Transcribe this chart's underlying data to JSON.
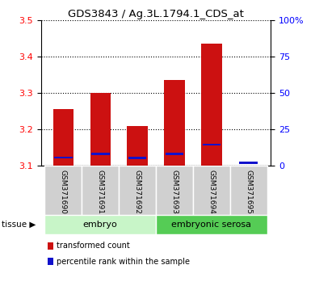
{
  "title": "GDS3843 / Ag.3L.1794.1_CDS_at",
  "samples": [
    "GSM371690",
    "GSM371691",
    "GSM371692",
    "GSM371693",
    "GSM371694",
    "GSM371695"
  ],
  "red_values": [
    3.255,
    3.3,
    3.21,
    3.335,
    3.435,
    3.1
  ],
  "blue_values": [
    3.123,
    3.133,
    3.122,
    3.133,
    3.158,
    3.108
  ],
  "red_has_bar": [
    true,
    true,
    true,
    true,
    true,
    false
  ],
  "ymin": 3.1,
  "ymax": 3.5,
  "yticks_left": [
    3.1,
    3.2,
    3.3,
    3.4,
    3.5
  ],
  "yticks_right": [
    0,
    25,
    50,
    75,
    100
  ],
  "ytick_labels_right": [
    "0",
    "25",
    "50",
    "75",
    "100%"
  ],
  "tissue_groups": [
    {
      "label": "embryo",
      "start": 0,
      "end": 3,
      "color": "#c8f5c8"
    },
    {
      "label": "embryonic serosa",
      "start": 3,
      "end": 6,
      "color": "#55cc55"
    }
  ],
  "tissue_label": "tissue",
  "bar_color": "#cc1111",
  "blue_color": "#1111cc",
  "bar_width": 0.55,
  "legend_items": [
    {
      "label": "transformed count",
      "color": "#cc1111"
    },
    {
      "label": "percentile rank within the sample",
      "color": "#1111cc"
    }
  ],
  "background_color": "#ffffff",
  "sample_box_color": "#d0d0d0"
}
